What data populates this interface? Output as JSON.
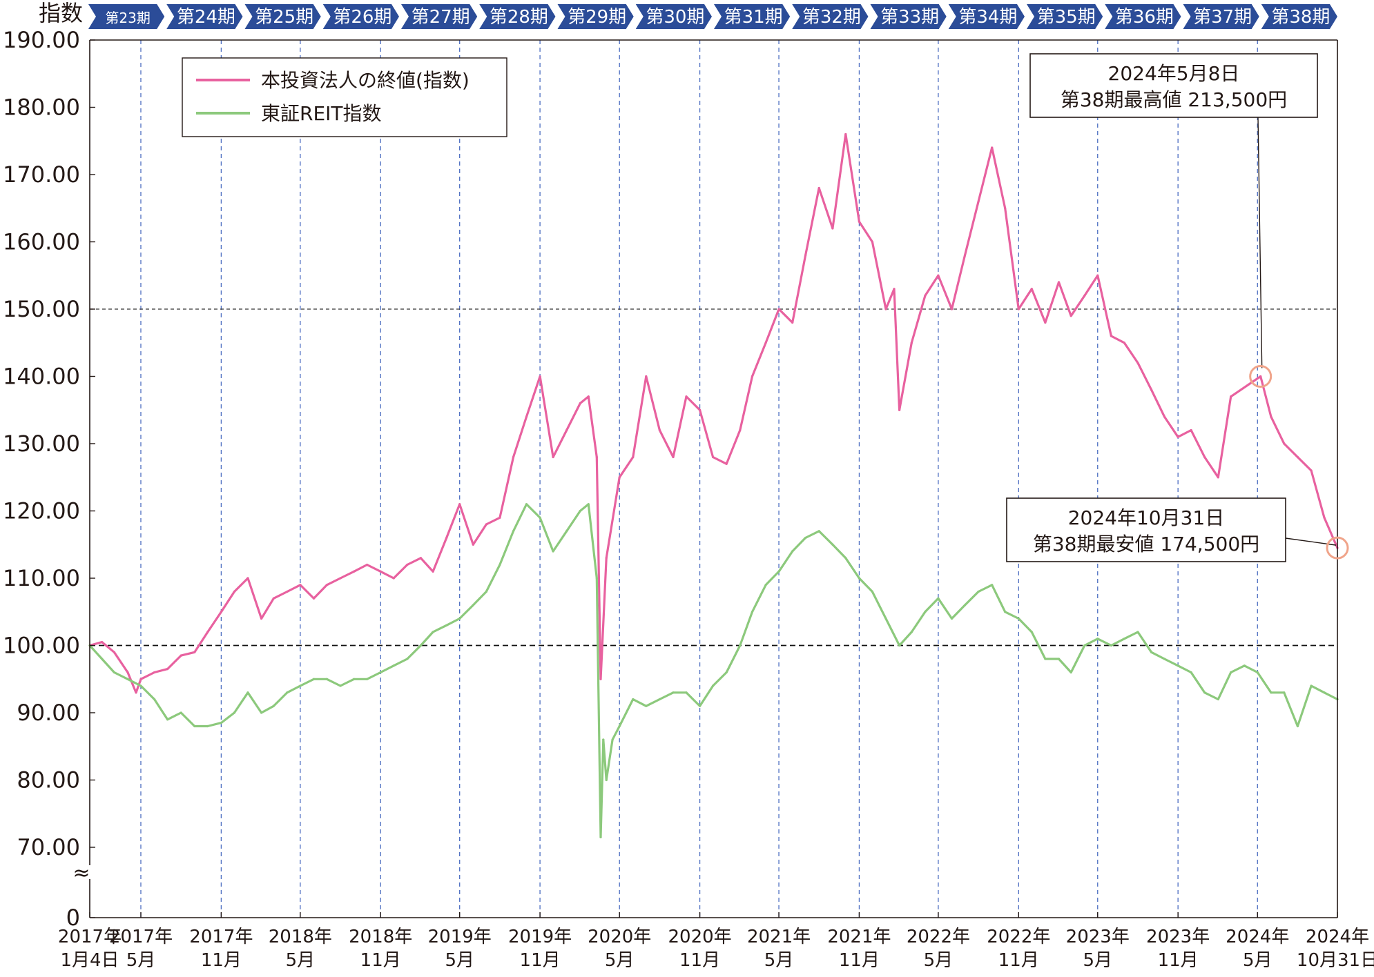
{
  "chart_data": {
    "type": "line",
    "ylabel": "指数",
    "y_ticks": [
      "190.00",
      "180.00",
      "170.00",
      "160.00",
      "150.00",
      "140.00",
      "130.00",
      "120.00",
      "110.00",
      "100.00",
      "90.00",
      "80.00",
      "70.00",
      "0"
    ],
    "y_axis_break": "≈",
    "ylim": [
      70,
      190
    ],
    "reference_lines": [
      100,
      150
    ],
    "periods": [
      "第23期",
      "第24期",
      "第25期",
      "第26期",
      "第27期",
      "第28期",
      "第29期",
      "第30期",
      "第31期",
      "第32期",
      "第33期",
      "第34期",
      "第35期",
      "第36期",
      "第37期",
      "第38期"
    ],
    "x_ticks": [
      {
        "line1": "2017年",
        "line2": "1月4日"
      },
      {
        "line1": "2017年",
        "line2": "5月"
      },
      {
        "line1": "2017年",
        "line2": "11月"
      },
      {
        "line1": "2018年",
        "line2": "5月"
      },
      {
        "line1": "2018年",
        "line2": "11月"
      },
      {
        "line1": "2019年",
        "line2": "5月"
      },
      {
        "line1": "2019年",
        "line2": "11月"
      },
      {
        "line1": "2020年",
        "line2": "5月"
      },
      {
        "line1": "2020年",
        "line2": "11月"
      },
      {
        "line1": "2021年",
        "line2": "5月"
      },
      {
        "line1": "2021年",
        "line2": "11月"
      },
      {
        "line1": "2022年",
        "line2": "5月"
      },
      {
        "line1": "2022年",
        "line2": "11月"
      },
      {
        "line1": "2023年",
        "line2": "5月"
      },
      {
        "line1": "2023年",
        "line2": "11月"
      },
      {
        "line1": "2024年",
        "line2": "5月"
      },
      {
        "line1": "2024年",
        "line2": "10月31日"
      }
    ],
    "series": [
      {
        "name": "本投資法人の終値(指数)",
        "color": "#e8619f",
        "points": [
          [
            "2017-01-04",
            100.0
          ],
          [
            "2017-02-01",
            100.5
          ],
          [
            "2017-03-01",
            99.0
          ],
          [
            "2017-04-01",
            96.0
          ],
          [
            "2017-04-20",
            93.0
          ],
          [
            "2017-05-01",
            95.0
          ],
          [
            "2017-06-01",
            96.0
          ],
          [
            "2017-07-01",
            96.5
          ],
          [
            "2017-08-01",
            98.5
          ],
          [
            "2017-09-01",
            99.0
          ],
          [
            "2017-10-01",
            102.0
          ],
          [
            "2017-11-01",
            105.0
          ],
          [
            "2017-12-01",
            108.0
          ],
          [
            "2018-01-01",
            110.0
          ],
          [
            "2018-02-01",
            104.0
          ],
          [
            "2018-03-01",
            107.0
          ],
          [
            "2018-04-01",
            108.0
          ],
          [
            "2018-05-01",
            109.0
          ],
          [
            "2018-06-01",
            107.0
          ],
          [
            "2018-07-01",
            109.0
          ],
          [
            "2018-08-01",
            110.0
          ],
          [
            "2018-09-01",
            111.0
          ],
          [
            "2018-10-01",
            112.0
          ],
          [
            "2018-11-01",
            111.0
          ],
          [
            "2018-12-01",
            110.0
          ],
          [
            "2019-01-01",
            112.0
          ],
          [
            "2019-02-01",
            113.0
          ],
          [
            "2019-03-01",
            111.0
          ],
          [
            "2019-04-01",
            116.0
          ],
          [
            "2019-05-01",
            121.0
          ],
          [
            "2019-06-01",
            115.0
          ],
          [
            "2019-07-01",
            118.0
          ],
          [
            "2019-08-01",
            119.0
          ],
          [
            "2019-09-01",
            128.0
          ],
          [
            "2019-10-01",
            134.0
          ],
          [
            "2019-11-01",
            140.0
          ],
          [
            "2019-12-01",
            128.0
          ],
          [
            "2020-01-01",
            132.0
          ],
          [
            "2020-02-01",
            136.0
          ],
          [
            "2020-02-20",
            137.0
          ],
          [
            "2020-03-10",
            128.0
          ],
          [
            "2020-03-19",
            95.0
          ],
          [
            "2020-04-01",
            113.0
          ],
          [
            "2020-05-01",
            125.0
          ],
          [
            "2020-06-01",
            128.0
          ],
          [
            "2020-07-01",
            140.0
          ],
          [
            "2020-08-01",
            132.0
          ],
          [
            "2020-09-01",
            128.0
          ],
          [
            "2020-10-01",
            137.0
          ],
          [
            "2020-11-01",
            135.0
          ],
          [
            "2020-12-01",
            128.0
          ],
          [
            "2021-01-01",
            127.0
          ],
          [
            "2021-02-01",
            132.0
          ],
          [
            "2021-03-01",
            140.0
          ],
          [
            "2021-04-01",
            145.0
          ],
          [
            "2021-05-01",
            150.0
          ],
          [
            "2021-06-01",
            148.0
          ],
          [
            "2021-07-01",
            158.0
          ],
          [
            "2021-08-01",
            168.0
          ],
          [
            "2021-09-01",
            162.0
          ],
          [
            "2021-10-01",
            176.0
          ],
          [
            "2021-11-01",
            163.0
          ],
          [
            "2021-12-01",
            160.0
          ],
          [
            "2022-01-01",
            150.0
          ],
          [
            "2022-01-20",
            153.0
          ],
          [
            "2022-02-01",
            135.0
          ],
          [
            "2022-03-01",
            145.0
          ],
          [
            "2022-04-01",
            152.0
          ],
          [
            "2022-05-01",
            155.0
          ],
          [
            "2022-06-01",
            150.0
          ],
          [
            "2022-07-01",
            158.0
          ],
          [
            "2022-08-01",
            166.0
          ],
          [
            "2022-09-01",
            174.0
          ],
          [
            "2022-10-01",
            165.0
          ],
          [
            "2022-11-01",
            150.0
          ],
          [
            "2022-12-01",
            153.0
          ],
          [
            "2023-01-01",
            148.0
          ],
          [
            "2023-02-01",
            154.0
          ],
          [
            "2023-03-01",
            149.0
          ],
          [
            "2023-04-01",
            152.0
          ],
          [
            "2023-05-01",
            155.0
          ],
          [
            "2023-06-01",
            146.0
          ],
          [
            "2023-07-01",
            145.0
          ],
          [
            "2023-08-01",
            142.0
          ],
          [
            "2023-09-01",
            138.0
          ],
          [
            "2023-10-01",
            134.0
          ],
          [
            "2023-11-01",
            131.0
          ],
          [
            "2023-12-01",
            132.0
          ],
          [
            "2024-01-01",
            128.0
          ],
          [
            "2024-02-01",
            125.0
          ],
          [
            "2024-03-01",
            137.0
          ],
          [
            "2024-05-08",
            140.0
          ],
          [
            "2024-06-01",
            134.0
          ],
          [
            "2024-07-01",
            130.0
          ],
          [
            "2024-08-01",
            128.0
          ],
          [
            "2024-09-01",
            126.0
          ],
          [
            "2024-10-01",
            119.0
          ],
          [
            "2024-10-31",
            114.5
          ]
        ]
      },
      {
        "name": "東証REIT指数",
        "color": "#8cc97c",
        "points": [
          [
            "2017-01-04",
            100.0
          ],
          [
            "2017-02-01",
            98.0
          ],
          [
            "2017-03-01",
            96.0
          ],
          [
            "2017-04-01",
            95.0
          ],
          [
            "2017-05-01",
            94.0
          ],
          [
            "2017-06-01",
            92.0
          ],
          [
            "2017-07-01",
            89.0
          ],
          [
            "2017-08-01",
            90.0
          ],
          [
            "2017-09-01",
            88.0
          ],
          [
            "2017-10-01",
            88.0
          ],
          [
            "2017-11-01",
            88.5
          ],
          [
            "2017-12-01",
            90.0
          ],
          [
            "2018-01-01",
            93.0
          ],
          [
            "2018-02-01",
            90.0
          ],
          [
            "2018-03-01",
            91.0
          ],
          [
            "2018-04-01",
            93.0
          ],
          [
            "2018-05-01",
            94.0
          ],
          [
            "2018-06-01",
            95.0
          ],
          [
            "2018-07-01",
            95.0
          ],
          [
            "2018-08-01",
            94.0
          ],
          [
            "2018-09-01",
            95.0
          ],
          [
            "2018-10-01",
            95.0
          ],
          [
            "2018-11-01",
            96.0
          ],
          [
            "2018-12-01",
            97.0
          ],
          [
            "2019-01-01",
            98.0
          ],
          [
            "2019-02-01",
            100.0
          ],
          [
            "2019-03-01",
            102.0
          ],
          [
            "2019-04-01",
            103.0
          ],
          [
            "2019-05-01",
            104.0
          ],
          [
            "2019-06-01",
            106.0
          ],
          [
            "2019-07-01",
            108.0
          ],
          [
            "2019-08-01",
            112.0
          ],
          [
            "2019-09-01",
            117.0
          ],
          [
            "2019-10-01",
            121.0
          ],
          [
            "2019-11-01",
            119.0
          ],
          [
            "2019-12-01",
            114.0
          ],
          [
            "2020-01-01",
            117.0
          ],
          [
            "2020-02-01",
            120.0
          ],
          [
            "2020-02-20",
            121.0
          ],
          [
            "2020-03-10",
            110.0
          ],
          [
            "2020-03-19",
            71.5
          ],
          [
            "2020-03-25",
            86.0
          ],
          [
            "2020-04-01",
            80.0
          ],
          [
            "2020-04-15",
            86.0
          ],
          [
            "2020-05-01",
            88.0
          ],
          [
            "2020-06-01",
            92.0
          ],
          [
            "2020-07-01",
            91.0
          ],
          [
            "2020-08-01",
            92.0
          ],
          [
            "2020-09-01",
            93.0
          ],
          [
            "2020-10-01",
            93.0
          ],
          [
            "2020-11-01",
            91.0
          ],
          [
            "2020-12-01",
            94.0
          ],
          [
            "2021-01-01",
            96.0
          ],
          [
            "2021-02-01",
            100.0
          ],
          [
            "2021-03-01",
            105.0
          ],
          [
            "2021-04-01",
            109.0
          ],
          [
            "2021-05-01",
            111.0
          ],
          [
            "2021-06-01",
            114.0
          ],
          [
            "2021-07-01",
            116.0
          ],
          [
            "2021-08-01",
            117.0
          ],
          [
            "2021-09-01",
            115.0
          ],
          [
            "2021-10-01",
            113.0
          ],
          [
            "2021-11-01",
            110.0
          ],
          [
            "2021-12-01",
            108.0
          ],
          [
            "2022-01-01",
            104.0
          ],
          [
            "2022-02-01",
            100.0
          ],
          [
            "2022-03-01",
            102.0
          ],
          [
            "2022-04-01",
            105.0
          ],
          [
            "2022-05-01",
            107.0
          ],
          [
            "2022-06-01",
            104.0
          ],
          [
            "2022-07-01",
            106.0
          ],
          [
            "2022-08-01",
            108.0
          ],
          [
            "2022-09-01",
            109.0
          ],
          [
            "2022-10-01",
            105.0
          ],
          [
            "2022-11-01",
            104.0
          ],
          [
            "2022-12-01",
            102.0
          ],
          [
            "2023-01-01",
            98.0
          ],
          [
            "2023-02-01",
            98.0
          ],
          [
            "2023-03-01",
            96.0
          ],
          [
            "2023-04-01",
            100.0
          ],
          [
            "2023-05-01",
            101.0
          ],
          [
            "2023-06-01",
            100.0
          ],
          [
            "2023-07-01",
            101.0
          ],
          [
            "2023-08-01",
            102.0
          ],
          [
            "2023-09-01",
            99.0
          ],
          [
            "2023-10-01",
            98.0
          ],
          [
            "2023-11-01",
            97.0
          ],
          [
            "2023-12-01",
            96.0
          ],
          [
            "2024-01-01",
            93.0
          ],
          [
            "2024-02-01",
            92.0
          ],
          [
            "2024-03-01",
            96.0
          ],
          [
            "2024-04-01",
            97.0
          ],
          [
            "2024-05-01",
            96.0
          ],
          [
            "2024-06-01",
            93.0
          ],
          [
            "2024-07-01",
            93.0
          ],
          [
            "2024-08-01",
            88.0
          ],
          [
            "2024-09-01",
            94.0
          ],
          [
            "2024-10-01",
            93.0
          ],
          [
            "2024-10-31",
            92.0
          ]
        ]
      }
    ],
    "legend_position": "top-left",
    "annotations": [
      {
        "date": "2024-05-08",
        "value": 140.0,
        "line1": "2024年5月8日",
        "line2": "第38期最高値 213,500円"
      },
      {
        "date": "2024-10-31",
        "value": 114.5,
        "line1": "2024年10月31日",
        "line2": "第38期最安値 174,500円"
      }
    ]
  },
  "colors": {
    "axis": "#231815",
    "period_banner": "#2b4c98",
    "grid_dashed": "#4a6cc0",
    "marker": "#f0a48a"
  }
}
